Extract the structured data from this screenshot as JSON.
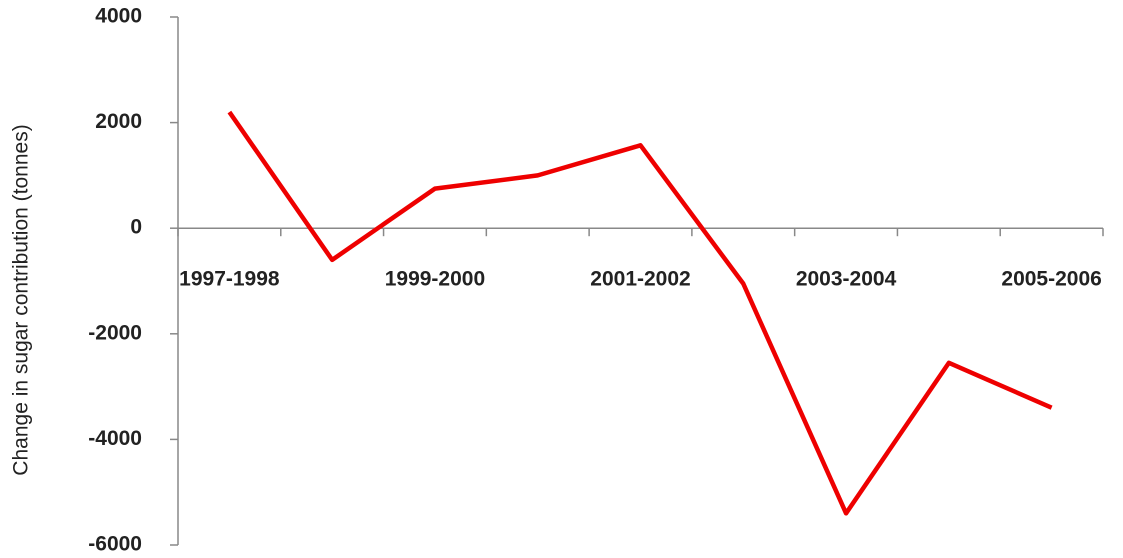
{
  "chart_data": {
    "type": "line",
    "y_label": "Change in sugar contribution (tonnes)",
    "categories": [
      "1997-1998",
      null,
      "1999-2000",
      null,
      "2001-2002",
      null,
      "2003-2004",
      null,
      "2005-2006"
    ],
    "values": [
      2200,
      -600,
      750,
      1000,
      1570,
      -1050,
      -5400,
      -2550,
      -3400
    ],
    "color": "#ee0000",
    "ylim": [
      -6000,
      4000
    ],
    "yticks": [
      4000,
      2000,
      0,
      -2000,
      -4000,
      -6000
    ],
    "grid": false
  }
}
